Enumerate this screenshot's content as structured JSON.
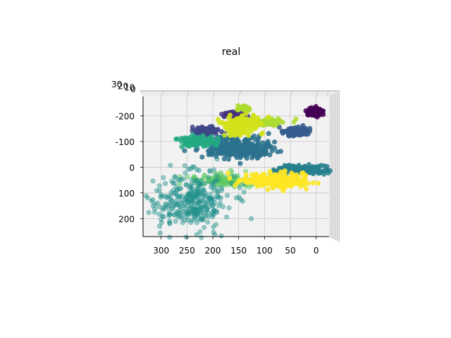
{
  "chart_data": {
    "type": "scatter",
    "projection": "3d",
    "title": "real",
    "xlabel": "",
    "ylabel": "",
    "zlabel": "",
    "view": "top-down",
    "grid": true,
    "legend": "none",
    "xlim": [
      -25,
      335
    ],
    "ylim": [
      -275,
      270
    ],
    "x_ticks": [
      300,
      250,
      200,
      150,
      100,
      50,
      0
    ],
    "y_ticks": [
      -200,
      -100,
      0,
      100,
      200
    ],
    "z_tick_labels": [
      "30",
      "20",
      "10",
      "0"
    ],
    "colormap": "viridis",
    "clusters": [
      {
        "color": "#440154",
        "cx": 3,
        "cy": -215,
        "sx": 8,
        "sy": 8,
        "n": 90,
        "alpha": 0.85
      },
      {
        "color": "#46327e",
        "cx": 160,
        "cy": -205,
        "sx": 12,
        "sy": 6,
        "n": 45,
        "alpha": 0.8
      },
      {
        "color": "#3f4788",
        "cx": 212,
        "cy": -140,
        "sx": 10,
        "sy": 8,
        "n": 110,
        "alpha": 0.85
      },
      {
        "color": "#365c8d",
        "cx": 40,
        "cy": -138,
        "sx": 14,
        "sy": 7,
        "n": 110,
        "alpha": 0.85
      },
      {
        "color": "#2c728e",
        "cx": 160,
        "cy": -80,
        "sx": 30,
        "sy": 20,
        "n": 260,
        "alpha": 0.85
      },
      {
        "color": "#2c728e",
        "cx": 115,
        "cy": -65,
        "sx": 16,
        "sy": 16,
        "n": 80,
        "alpha": 0.85
      },
      {
        "color": "#277f8e",
        "cx": 25,
        "cy": 10,
        "sx": 24,
        "sy": 9,
        "n": 160,
        "alpha": 0.85
      },
      {
        "color": "#24aa83",
        "cx": 230,
        "cy": -100,
        "sx": 18,
        "sy": 10,
        "n": 110,
        "alpha": 0.85
      },
      {
        "color": "#5ec962",
        "cx": 180,
        "cy": 50,
        "sx": 32,
        "sy": 12,
        "n": 130,
        "alpha": 0.5
      },
      {
        "color": "#21918c",
        "cx": 240,
        "cy": 130,
        "sx": 38,
        "sy": 55,
        "n": 330,
        "alpha": 0.45
      },
      {
        "color": "#addc30",
        "cx": 140,
        "cy": -230,
        "sx": 6,
        "sy": 5,
        "n": 25,
        "alpha": 0.9
      },
      {
        "color": "#addc30",
        "cx": 90,
        "cy": -175,
        "sx": 20,
        "sy": 8,
        "n": 55,
        "alpha": 0.85
      },
      {
        "color": "#d2e21b",
        "cx": 145,
        "cy": -165,
        "sx": 16,
        "sy": 20,
        "n": 150,
        "alpha": 0.9
      },
      {
        "color": "#fde725",
        "cx": 80,
        "cy": 55,
        "sx": 32,
        "sy": 15,
        "n": 230,
        "alpha": 0.9
      }
    ]
  }
}
